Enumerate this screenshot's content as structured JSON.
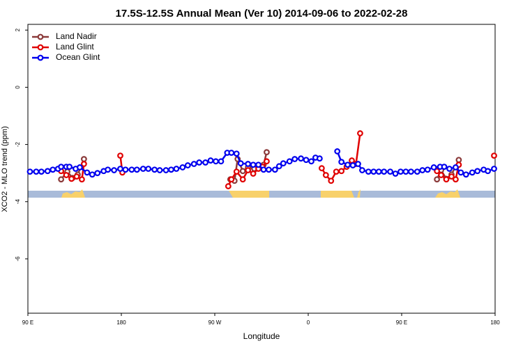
{
  "chart_data": {
    "type": "line",
    "title": "17.5S-12.5S Annual Mean (Ver 10)   2014-09-06 to 2022-02-28",
    "xlabel": "Longitude",
    "ylabel": "XCO2 - MLO trend (ppm)",
    "xlim": [
      90,
      540
    ],
    "ylim": [
      -7.9,
      2.2
    ],
    "xticks": [
      {
        "value": 90,
        "label": "90 E"
      },
      180,
      {
        "value": 270,
        "label": "90 W"
      },
      {
        "value": 360,
        "label": "0"
      },
      {
        "value": 450,
        "label": "90 E"
      },
      {
        "value": 540,
        "label": "180"
      }
    ],
    "yticks": [
      2,
      0,
      -2,
      -4,
      -6
    ],
    "legend": "top-left",
    "series": [
      {
        "name": "Land Nadir",
        "color": "#8b3a3a",
        "x": [
          122,
          128,
          133,
          138,
          144,
          200,
          285,
          289,
          292,
          297,
          302,
          308,
          312,
          317,
          320,
          450,
          484,
          488,
          493,
          498,
          505
        ],
        "values": [
          -3.22,
          -2.95,
          -3.17,
          -3.05,
          -2.51,
          null,
          -3.22,
          -3.27,
          -2.51,
          -2.93,
          -2.8,
          -2.85,
          -2.8,
          -2.71,
          -2.27,
          null,
          -3.22,
          -2.9,
          -3.2,
          -3.05,
          -2.54
        ]
      },
      {
        "name": "Land Glint",
        "color": "#e00000",
        "x": [
          122,
          127,
          132,
          137,
          142,
          144,
          150,
          179,
          181,
          250,
          283,
          286,
          291,
          297,
          302,
          307,
          312,
          316,
          320,
          340,
          373,
          377,
          382,
          387,
          392,
          397,
          402,
          406,
          410,
          450,
          484,
          488,
          493,
          498,
          502,
          505,
          520,
          539
        ],
        "values": [
          -2.93,
          -3.07,
          -3.2,
          -3.12,
          -3.22,
          -2.68,
          null,
          -2.39,
          -2.98,
          null,
          -3.46,
          -3.22,
          -2.95,
          -3.22,
          -2.9,
          -3.02,
          -2.85,
          -2.78,
          -2.59,
          null,
          -2.83,
          -3.07,
          -3.27,
          -2.95,
          -2.93,
          -2.78,
          -2.56,
          -2.68,
          -1.61,
          null,
          -2.93,
          -3.07,
          -3.22,
          -3.12,
          -3.22,
          -2.71,
          null,
          -2.39
        ]
      },
      {
        "name": "Ocean Glint",
        "color": "#0000ee",
        "x": [
          92,
          98,
          103,
          109,
          114,
          119,
          122,
          127,
          130,
          136,
          140,
          147,
          152,
          157,
          163,
          167,
          173,
          179,
          184,
          190,
          195,
          201,
          206,
          212,
          217,
          223,
          228,
          233,
          239,
          244,
          250,
          255,
          261,
          266,
          271,
          276,
          282,
          286,
          291,
          295,
          302,
          307,
          312,
          317,
          322,
          328,
          332,
          336,
          342,
          347,
          353,
          358,
          363,
          367,
          371,
          379,
          388,
          392,
          398,
          403,
          408,
          412,
          418,
          423,
          428,
          433,
          439,
          444,
          449,
          454,
          459,
          465,
          470,
          475,
          481,
          487,
          491,
          496,
          502,
          507,
          512,
          518,
          523,
          529,
          533,
          539
        ],
        "values": [
          -2.95,
          -2.95,
          -2.95,
          -2.93,
          -2.88,
          -2.85,
          -2.78,
          -2.78,
          -2.78,
          -2.85,
          -2.8,
          -2.98,
          -3.05,
          -3.0,
          -2.93,
          -2.88,
          -2.9,
          -2.85,
          -2.88,
          -2.88,
          -2.88,
          -2.85,
          -2.85,
          -2.88,
          -2.9,
          -2.9,
          -2.88,
          -2.85,
          -2.8,
          -2.73,
          -2.68,
          -2.63,
          -2.63,
          -2.56,
          -2.59,
          -2.59,
          -2.29,
          -2.29,
          -2.32,
          -2.66,
          -2.68,
          -2.71,
          -2.71,
          -2.88,
          -2.88,
          -2.88,
          -2.76,
          -2.66,
          -2.59,
          -2.51,
          -2.49,
          -2.54,
          -2.59,
          -2.46,
          -2.49,
          null,
          -2.24,
          -2.61,
          -2.71,
          -2.73,
          -2.68,
          -2.9,
          -2.95,
          -2.95,
          -2.95,
          -2.95,
          -2.95,
          -3.02,
          -2.95,
          -2.95,
          -2.95,
          -2.95,
          -2.9,
          -2.88,
          -2.8,
          -2.78,
          -2.78,
          -2.85,
          -2.8,
          -2.98,
          -3.05,
          -2.98,
          -2.93,
          -2.88,
          -2.93,
          -2.85
        ]
      }
    ]
  }
}
